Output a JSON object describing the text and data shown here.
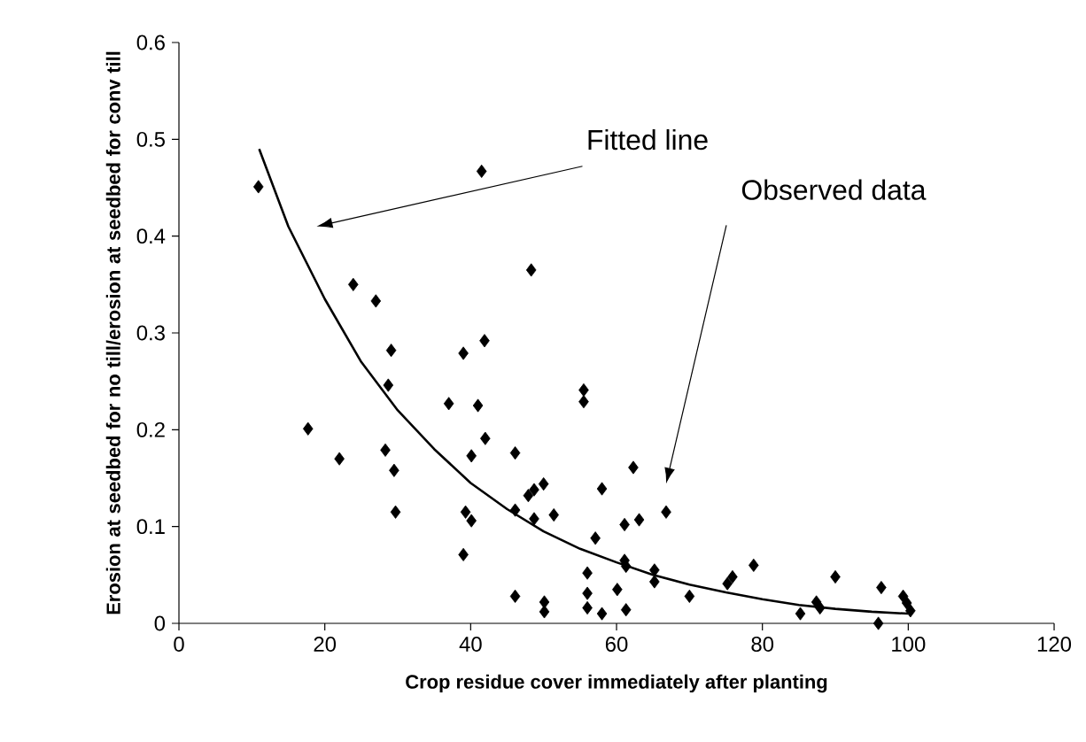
{
  "chart_data": {
    "type": "scatter",
    "xlabel": "Crop residue cover immediately after planting",
    "ylabel": "Erosion at seedbed for no till/erosion at seedbed for conv till",
    "xlim": [
      0,
      120
    ],
    "ylim": [
      0,
      0.6
    ],
    "xticks": [
      0,
      20,
      40,
      60,
      80,
      100,
      120
    ],
    "yticks": [
      0,
      0.1,
      0.2,
      0.3,
      0.4,
      0.5,
      0.6
    ],
    "grid": false,
    "series": [
      {
        "type": "scatter",
        "color": "#000000",
        "marker": "diamond",
        "x": [
          10.9,
          41.5,
          48.3,
          23.9,
          27,
          29.1,
          28.7,
          39,
          41.9,
          37,
          41,
          42,
          46.1,
          17.7,
          22,
          28.3,
          29.5,
          29.7,
          40.1,
          39.3,
          40.1,
          39,
          46.1,
          46.1,
          50,
          48.7,
          47.9,
          48.7,
          51.4,
          50.1,
          50.1,
          55.5,
          55.5,
          58,
          62.3,
          66.8,
          61.1,
          63.1,
          57.1,
          61.1,
          61.3,
          65.2,
          65.2,
          56,
          56,
          56,
          58,
          60.1,
          61.3,
          70,
          75.2,
          75.9,
          78.8,
          85.2,
          87.4,
          87.9,
          90,
          96.3,
          95.9,
          99.3,
          99.8,
          100.3
        ],
        "values": [
          0.451,
          0.467,
          0.365,
          0.35,
          0.333,
          0.282,
          0.246,
          0.279,
          0.292,
          0.227,
          0.225,
          0.191,
          0.176,
          0.201,
          0.17,
          0.179,
          0.158,
          0.115,
          0.173,
          0.115,
          0.106,
          0.071,
          0.117,
          0.028,
          0.144,
          0.138,
          0.132,
          0.108,
          0.112,
          0.022,
          0.012,
          0.241,
          0.229,
          0.139,
          0.161,
          0.115,
          0.102,
          0.107,
          0.088,
          0.065,
          0.059,
          0.055,
          0.043,
          0.052,
          0.031,
          0.016,
          0.01,
          0.035,
          0.014,
          0.028,
          0.041,
          0.048,
          0.06,
          0.01,
          0.022,
          0.016,
          0.048,
          0.037,
          0,
          0.028,
          0.021,
          0.013
        ]
      },
      {
        "type": "line",
        "color": "#000000",
        "marker": "none",
        "x": [
          11,
          15,
          20,
          25,
          30,
          35,
          40,
          45,
          50,
          55,
          60,
          65,
          70,
          75,
          80,
          85,
          90,
          95,
          100
        ],
        "values": [
          0.49,
          0.41,
          0.335,
          0.27,
          0.22,
          0.18,
          0.145,
          0.118,
          0.095,
          0.077,
          0.063,
          0.05,
          0.04,
          0.032,
          0.025,
          0.019,
          0.015,
          0.012,
          0.01
        ]
      }
    ],
    "annotations": [
      "Fitted line",
      "Observed data"
    ]
  }
}
